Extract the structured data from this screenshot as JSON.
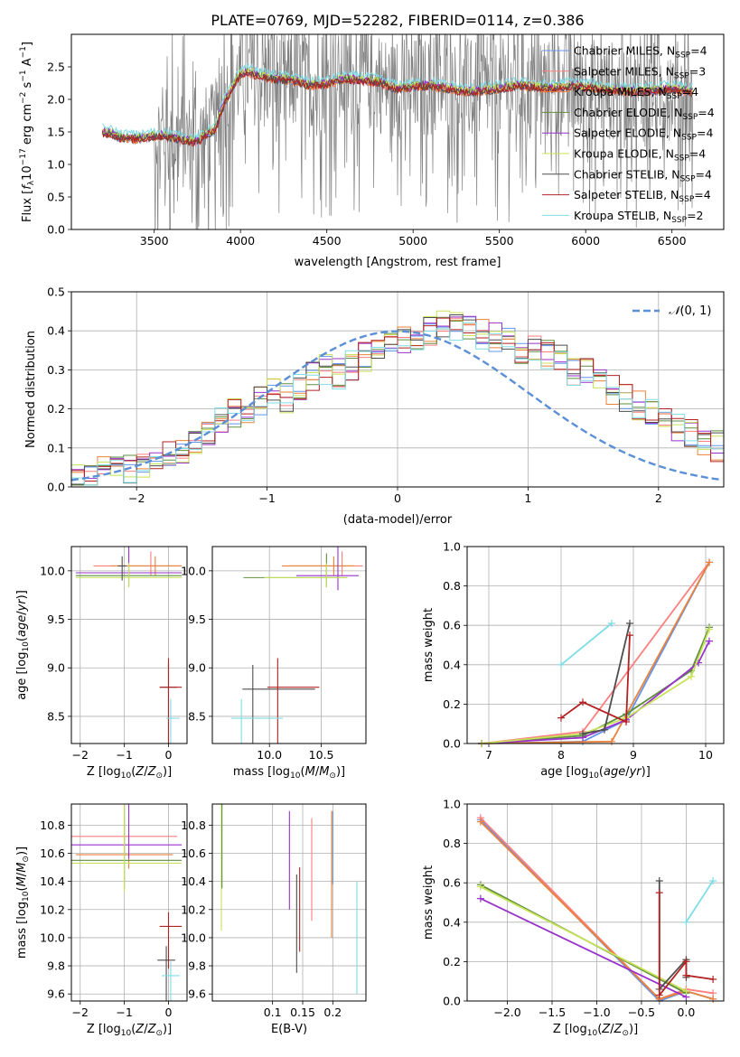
{
  "figure_title": "PLATE=0769, MJD=52282, FIBERID=0114, z=0.386",
  "colors": {
    "Chabrier MILES": "#6495ed",
    "Salpeter MILES": "#ff7f7f",
    "Kroupa MILES": "#e9823a",
    "Chabrier ELODIE": "#5f8f3e",
    "Salpeter ELODIE": "#9932cc",
    "Kroupa ELODIE": "#c8e25a",
    "Chabrier STELIB": "#4d4d4d",
    "Salpeter STELIB": "#b22222",
    "Kroupa STELIB": "#7fdde6",
    "data": "#808080",
    "gauss": "#5b8fd6"
  },
  "chart_data": [
    {
      "id": "spectrum",
      "type": "line",
      "title": "PLATE=0769, MJD=52282, FIBERID=0114, z=0.386",
      "xlabel": "wavelength [Angstrom, rest frame]",
      "ylabel": "Flux [f_λ 10^-17 erg cm^-2 s^-1 A^-1]",
      "xlim": [
        3020,
        6800
      ],
      "ylim": [
        0,
        3.0
      ],
      "xticks": [
        "3500",
        "4000",
        "4500",
        "5000",
        "5500",
        "6000",
        "6500"
      ],
      "yticks": [
        "0.0",
        "0.5",
        "1.0",
        "1.5",
        "2.0",
        "2.5"
      ],
      "grid": false,
      "legend_position": "top-right",
      "legend": [
        {
          "name": "Chabrier MILES",
          "suffix": "=4"
        },
        {
          "name": "Salpeter MILES",
          "suffix": "=3"
        },
        {
          "name": "Kroupa MILES",
          "suffix": "=4"
        },
        {
          "name": "Chabrier ELODIE",
          "suffix": "=4"
        },
        {
          "name": "Salpeter ELODIE",
          "suffix": "=4"
        },
        {
          "name": "Kroupa ELODIE",
          "suffix": "=4"
        },
        {
          "name": "Chabrier STELIB",
          "suffix": "=4"
        },
        {
          "name": "Salpeter STELIB",
          "suffix": "=4"
        },
        {
          "name": "Kroupa STELIB",
          "suffix": "=2"
        }
      ],
      "model_continuum": {
        "x": [
          3200,
          3260,
          3300,
          3400,
          3500,
          3550,
          3600,
          3700,
          3750,
          3800,
          3850,
          3900,
          3950,
          4000,
          4050,
          4100,
          4200,
          4300,
          4400,
          4500,
          4600,
          4700,
          4800,
          4900,
          5000,
          5100,
          5200,
          5300,
          5400,
          5500,
          5600,
          5700,
          5800,
          5900,
          6000,
          6100,
          6200,
          6300,
          6400,
          6500,
          6600
        ],
        "y": [
          1.48,
          1.45,
          1.4,
          1.38,
          1.42,
          1.43,
          1.4,
          1.35,
          1.33,
          1.45,
          1.5,
          1.9,
          2.15,
          2.38,
          2.4,
          2.35,
          2.3,
          2.28,
          2.2,
          2.22,
          2.3,
          2.28,
          2.25,
          2.15,
          2.18,
          2.2,
          2.15,
          2.1,
          2.12,
          2.15,
          2.2,
          2.18,
          2.15,
          2.2,
          2.18,
          2.15,
          2.12,
          2.1,
          2.12,
          2.15,
          2.1
        ]
      },
      "data_noise_start": 3500
    },
    {
      "id": "residuals",
      "type": "bar",
      "subtype": "step-histogram",
      "xlabel": "(data-model)/error",
      "ylabel": "Normed distribution",
      "xlim": [
        -2.5,
        2.5
      ],
      "ylim": [
        0,
        0.5
      ],
      "xticks": [
        "−2",
        "−1",
        "0",
        "1",
        "2"
      ],
      "yticks": [
        "0.0",
        "0.1",
        "0.2",
        "0.3",
        "0.4",
        "0.5"
      ],
      "grid": true,
      "legend_position": "top-right",
      "legend": [
        "N(0,1)"
      ],
      "bin_edges_start": -2.5,
      "bin_width": 0.1,
      "histogram_mean": [
        0.025,
        0.03,
        0.04,
        0.05,
        0.045,
        0.06,
        0.07,
        0.085,
        0.1,
        0.12,
        0.14,
        0.165,
        0.19,
        0.18,
        0.22,
        0.24,
        0.23,
        0.25,
        0.28,
        0.3,
        0.29,
        0.31,
        0.33,
        0.35,
        0.36,
        0.37,
        0.375,
        0.4,
        0.42,
        0.41,
        0.4,
        0.39,
        0.385,
        0.37,
        0.355,
        0.35,
        0.34,
        0.325,
        0.3,
        0.29,
        0.27,
        0.25,
        0.23,
        0.21,
        0.19,
        0.17,
        0.15,
        0.14,
        0.12,
        0.105,
        0.09,
        0.08,
        0.06,
        0.05,
        0.045,
        0.04,
        0.03,
        0.03,
        0.025,
        0.03,
        0.035
      ],
      "gauss_curve": {
        "mu": 0,
        "sigma": 1
      }
    },
    {
      "id": "age_vs_Z",
      "type": "scatter",
      "subtype": "errorbar",
      "xlabel": "Z [log10(Z/Z⊙)]",
      "ylabel": "age [log10(age/yr)]",
      "xlim": [
        -2.2,
        0.42
      ],
      "ylim": [
        8.22,
        10.25
      ],
      "xticks": [
        "−2",
        "−1",
        "0"
      ],
      "yticks": [
        "8.5",
        "9.0",
        "9.5",
        "10.0"
      ],
      "grid": true,
      "points": [
        {
          "series": "Salpeter MILES",
          "x": -0.4,
          "y": 10.05,
          "xerr": [
            1.3,
            0.7
          ],
          "yerr": [
            0.15,
            0.1
          ]
        },
        {
          "series": "Kroupa MILES",
          "x": -0.3,
          "y": 10.05,
          "xerr": [
            1.0,
            0.6
          ],
          "yerr": [
            0.1,
            0.1
          ]
        },
        {
          "series": "Chabrier ELODIE",
          "x": -0.9,
          "y": 9.95,
          "xerr": [
            1.2,
            1.2
          ],
          "yerr": [
            0.25,
            0.1
          ]
        },
        {
          "series": "Salpeter ELODIE",
          "x": -0.9,
          "y": 9.98,
          "xerr": [
            1.2,
            1.2
          ],
          "yerr": [
            1.3,
            0.15
          ]
        },
        {
          "series": "Kroupa ELODIE",
          "x": -0.9,
          "y": 9.93,
          "xerr": [
            1.2,
            1.2
          ],
          "yerr": [
            0.15,
            0.1
          ]
        },
        {
          "series": "Chabrier STELIB",
          "x": 0.0,
          "y": 8.8,
          "xerr": [
            0.2,
            0.2
          ],
          "yerr": [
            0.25,
            1.1
          ]
        },
        {
          "series": "Salpeter STELIB",
          "x": 0.0,
          "y": 8.8,
          "xerr": [
            0.2,
            0.3
          ],
          "yerr": [
            0.3,
            1.1
          ]
        },
        {
          "series": "Kroupa STELIB",
          "x": 0.05,
          "y": 8.48,
          "xerr": [
            0.1,
            0.2
          ],
          "yerr": [
            0.2,
            1.3
          ]
        },
        {
          "series": "Chabrier STELIB",
          "x": -1.05,
          "y": 10.05,
          "xerr": [
            0.1,
            0.1
          ],
          "yerr": [
            0.1,
            0.15
          ]
        }
      ]
    },
    {
      "id": "age_vs_mass",
      "type": "scatter",
      "subtype": "errorbar",
      "xlabel": "mass [log10(M/M⊙)]",
      "ylabel": "",
      "xlim": [
        9.45,
        10.93
      ],
      "ylim": [
        8.22,
        10.25
      ],
      "xticks": [
        "10.0",
        "10.5"
      ],
      "yticks": [
        "8.5",
        "9.0",
        "9.5",
        "10.0"
      ],
      "grid": true,
      "points": [
        {
          "series": "Salpeter MILES",
          "x": 10.7,
          "y": 10.05,
          "xerr": [
            0.5,
            0.2
          ],
          "yerr": [
            0.15,
            0.1
          ]
        },
        {
          "series": "Kroupa MILES",
          "x": 10.62,
          "y": 10.05,
          "xerr": [
            0.5,
            0.2
          ],
          "yerr": [
            0.1,
            0.1
          ]
        },
        {
          "series": "Chabrier ELODIE",
          "x": 10.55,
          "y": 9.93,
          "xerr": [
            0.8,
            0.2
          ],
          "yerr": [
            0.25,
            0.1
          ]
        },
        {
          "series": "Salpeter ELODIE",
          "x": 10.66,
          "y": 9.95,
          "xerr": [
            0.4,
            0.2
          ],
          "yerr": [
            1.3,
            0.15
          ]
        },
        {
          "series": "Kroupa ELODIE",
          "x": 10.55,
          "y": 9.93,
          "xerr": [
            0.6,
            0.2
          ],
          "yerr": [
            0.15,
            0.1
          ]
        },
        {
          "series": "Chabrier STELIB",
          "x": 9.84,
          "y": 8.78,
          "xerr": [
            0.1,
            0.6
          ],
          "yerr": [
            0.25,
            1.1
          ]
        },
        {
          "series": "Salpeter STELIB",
          "x": 10.08,
          "y": 8.8,
          "xerr": [
            0.1,
            0.4
          ],
          "yerr": [
            0.3,
            1.1
          ]
        },
        {
          "series": "Kroupa STELIB",
          "x": 9.73,
          "y": 8.48,
          "xerr": [
            0.1,
            0.4
          ],
          "yerr": [
            0.2,
            1.3
          ]
        }
      ]
    },
    {
      "id": "weight_vs_age",
      "type": "line",
      "xlabel": "age [log10(age/yr)]",
      "ylabel": "mass weight",
      "xlim": [
        6.7,
        10.25
      ],
      "ylim": [
        0,
        1.0
      ],
      "xticks": [
        "7",
        "8",
        "9",
        "10"
      ],
      "yticks": [
        "0.0",
        "0.2",
        "0.4",
        "0.6",
        "0.8",
        "1.0"
      ],
      "grid": true,
      "series": [
        {
          "name": "Chabrier MILES",
          "x": [
            6.9,
            8.3,
            8.9,
            10.05
          ],
          "y": [
            0.0,
            0.01,
            0.12,
            0.92
          ]
        },
        {
          "name": "Salpeter MILES",
          "x": [
            6.9,
            8.3,
            10.05
          ],
          "y": [
            0.0,
            0.06,
            0.92
          ]
        },
        {
          "name": "Kroupa MILES",
          "x": [
            6.9,
            8.7,
            10.05
          ],
          "y": [
            0.0,
            0.01,
            0.92
          ]
        },
        {
          "name": "Chabrier ELODIE",
          "x": [
            6.9,
            8.3,
            8.9,
            9.8,
            10.05
          ],
          "y": [
            0.0,
            0.04,
            0.15,
            0.37,
            0.59
          ]
        },
        {
          "name": "Salpeter ELODIE",
          "x": [
            6.9,
            8.3,
            8.9,
            9.9,
            10.05
          ],
          "y": [
            0.0,
            0.03,
            0.12,
            0.41,
            0.52
          ]
        },
        {
          "name": "Kroupa ELODIE",
          "x": [
            6.9,
            8.3,
            8.9,
            9.8,
            10.05
          ],
          "y": [
            0.0,
            0.05,
            0.13,
            0.34,
            0.58
          ]
        },
        {
          "name": "Chabrier STELIB",
          "x": [
            8.3,
            8.6,
            8.95
          ],
          "y": [
            0.05,
            0.07,
            0.61
          ]
        },
        {
          "name": "Salpeter STELIB",
          "x": [
            8.0,
            8.3,
            8.9,
            8.95
          ],
          "y": [
            0.13,
            0.21,
            0.11,
            0.55
          ]
        },
        {
          "name": "Kroupa STELIB",
          "x": [
            8.0,
            8.7
          ],
          "y": [
            0.4,
            0.61
          ]
        }
      ]
    },
    {
      "id": "mass_vs_Z",
      "type": "scatter",
      "subtype": "errorbar",
      "xlabel": "Z [log10(Z/Z⊙)]",
      "ylabel": "mass [log10(M/M⊙)]",
      "xlim": [
        -2.2,
        0.42
      ],
      "ylim": [
        9.55,
        10.95
      ],
      "xticks": [
        "−2",
        "−1",
        "0"
      ],
      "yticks": [
        "9.6",
        "9.8",
        "10.0",
        "10.2",
        "10.4",
        "10.6",
        "10.8"
      ],
      "grid": true,
      "points": [
        {
          "series": "Salpeter MILES",
          "x": -1.0,
          "y": 10.72,
          "xerr": [
            1.7,
            1.2
          ],
          "yerr": [
            0.1,
            0.1
          ]
        },
        {
          "series": "Kroupa MILES",
          "x": -0.9,
          "y": 10.59,
          "xerr": [
            1.2,
            1.0
          ],
          "yerr": [
            0.15,
            0.1
          ]
        },
        {
          "series": "Salpeter ELODIE",
          "x": -0.9,
          "y": 10.66,
          "xerr": [
            1.4,
            1.2
          ],
          "yerr": [
            0.9,
            0.1
          ]
        },
        {
          "series": "Chabrier ELODIE",
          "x": -1.0,
          "y": 10.55,
          "xerr": [
            1.3,
            1.3
          ],
          "yerr": [
            0.8,
            0.2
          ]
        },
        {
          "series": "Kroupa ELODIE",
          "x": -1.0,
          "y": 10.53,
          "xerr": [
            1.3,
            1.3
          ],
          "yerr": [
            0.8,
            0.2
          ]
        },
        {
          "series": "Chabrier STELIB",
          "x": -0.05,
          "y": 9.84,
          "xerr": [
            0.2,
            0.2
          ],
          "yerr": [
            0.1,
            0.6
          ]
        },
        {
          "series": "Salpeter STELIB",
          "x": 0.0,
          "y": 10.08,
          "xerr": [
            0.2,
            0.3
          ],
          "yerr": [
            0.1,
            0.3
          ]
        },
        {
          "series": "Kroupa STELIB",
          "x": 0.05,
          "y": 9.73,
          "xerr": [
            0.2,
            0.2
          ],
          "yerr": [
            0.1,
            0.6
          ]
        }
      ]
    },
    {
      "id": "mass_vs_EBV",
      "type": "scatter",
      "subtype": "errorbar",
      "xlabel": "E(B-V)",
      "ylabel": "",
      "xlim": [
        0.0,
        0.255
      ],
      "ylim": [
        9.55,
        10.95
      ],
      "xticks": [
        "0.1",
        "0.15",
        "0.2"
      ],
      "yticks": [
        "9.6",
        "9.8",
        "10.0",
        "10.2",
        "10.4",
        "10.6",
        "10.8"
      ],
      "grid": true,
      "points": [
        {
          "series": "Kroupa ELODIE",
          "x": 0.015,
          "y": 10.4,
          "xerr": [
            0,
            0
          ],
          "yerr": [
            0.7,
            0.35
          ]
        },
        {
          "series": "Chabrier ELODIE",
          "x": 0.016,
          "y": 10.55,
          "xerr": [
            0,
            0
          ],
          "yerr": [
            0.5,
            0.2
          ]
        },
        {
          "series": "Salpeter ELODIE",
          "x": 0.128,
          "y": 10.5,
          "xerr": [
            0,
            0
          ],
          "yerr": [
            0.4,
            0.3
          ]
        },
        {
          "series": "Chabrier STELIB",
          "x": 0.14,
          "y": 10.1,
          "xerr": [
            0,
            0
          ],
          "yerr": [
            0.35,
            0.35
          ]
        },
        {
          "series": "Salpeter STELIB",
          "x": 0.145,
          "y": 10.2,
          "xerr": [
            0,
            0
          ],
          "yerr": [
            0.3,
            0.3
          ]
        },
        {
          "series": "Salpeter MILES",
          "x": 0.165,
          "y": 10.5,
          "xerr": [
            0,
            0
          ],
          "yerr": [
            0.35,
            0.38
          ]
        },
        {
          "series": "Kroupa MILES",
          "x": 0.198,
          "y": 10.4,
          "xerr": [
            0,
            0
          ],
          "yerr": [
            0.5,
            0.4
          ]
        },
        {
          "series": "Chabrier MILES",
          "x": 0.2,
          "y": 10.6,
          "xerr": [
            0,
            0
          ],
          "yerr": [
            0.3,
            0.22
          ]
        },
        {
          "series": "Kroupa STELIB",
          "x": 0.24,
          "y": 10.0,
          "xerr": [
            0,
            0
          ],
          "yerr": [
            0.4,
            0.4
          ]
        }
      ]
    },
    {
      "id": "weight_vs_Z",
      "type": "line",
      "xlabel": "Z [log10(Z/Z⊙)]",
      "ylabel": "mass weight",
      "xlim": [
        -2.45,
        0.42
      ],
      "ylim": [
        0,
        1.0
      ],
      "xticks": [
        "−2.0",
        "−1.5",
        "−1.0",
        "−0.5",
        "0.0"
      ],
      "yticks": [
        "0.0",
        "0.2",
        "0.4",
        "0.6",
        "0.8",
        "1.0"
      ],
      "grid": true,
      "series": [
        {
          "name": "Chabrier MILES",
          "x": [
            -2.3,
            -0.3,
            0.0,
            0.3
          ],
          "y": [
            0.92,
            0.0,
            0.05,
            0.01
          ]
        },
        {
          "name": "Salpeter MILES",
          "x": [
            -2.3,
            -0.3,
            0.0,
            0.3
          ],
          "y": [
            0.93,
            0.01,
            0.06,
            0.04
          ]
        },
        {
          "name": "Kroupa MILES",
          "x": [
            -2.3,
            -0.3,
            0.0,
            0.3
          ],
          "y": [
            0.91,
            0.01,
            0.05,
            0.01
          ]
        },
        {
          "name": "Chabrier ELODIE",
          "x": [
            -2.3,
            0.0
          ],
          "y": [
            0.59,
            0.04
          ]
        },
        {
          "name": "Salpeter ELODIE",
          "x": [
            -2.3,
            0.0
          ],
          "y": [
            0.52,
            0.02
          ]
        },
        {
          "name": "Kroupa ELODIE",
          "x": [
            -2.3,
            0.0
          ],
          "y": [
            0.58,
            0.05
          ]
        },
        {
          "name": "Chabrier STELIB",
          "x": [
            -0.3,
            -0.3,
            0.0,
            0.0
          ],
          "y": [
            0.61,
            0.06,
            0.21,
            0.12
          ]
        },
        {
          "name": "Salpeter STELIB",
          "x": [
            -0.3,
            -0.3,
            0.0,
            0.0,
            0.3
          ],
          "y": [
            0.55,
            0.03,
            0.2,
            0.13,
            0.11
          ]
        },
        {
          "name": "Kroupa STELIB",
          "x": [
            0.0,
            0.3
          ],
          "y": [
            0.4,
            0.61
          ]
        }
      ]
    }
  ]
}
